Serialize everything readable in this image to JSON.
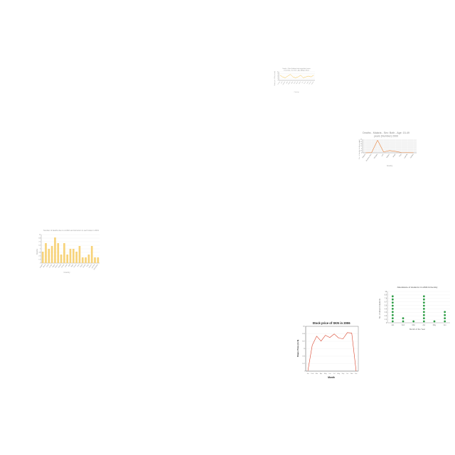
{
  "canvas": {
    "background": "#ffffff"
  },
  "chart_data": [
    {
      "id": "chart1",
      "type": "line",
      "title": "Deaths - Other ill-defined and unspecified causes of mortality - Sex: Both - Age: All Ages (Rate) (per 100k people)",
      "title_lines": [
        "Deaths - Other ill-defined and unspecified causes",
        "of mortality - Sex: Both - Age: All Ages (Rate)"
      ],
      "xlabel": "Country",
      "ylabel": "Rate (per 100k people)",
      "categories": [
        "Armenia",
        "Brazil",
        "Colombia",
        "Egypt",
        "Georgia",
        "Japan",
        "Kenya",
        "Mexico",
        "Nigeria",
        "Peru",
        "Russia",
        "Sudan",
        "Ukraine",
        "Vietnam"
      ],
      "values": [
        6,
        4,
        3,
        5,
        7,
        4,
        3,
        4,
        6,
        3,
        4,
        5,
        4,
        6
      ],
      "ylim": [
        0,
        10
      ],
      "color": "#f5c344",
      "grid": true
    },
    {
      "id": "chart2",
      "type": "line",
      "title": "Deaths - Malaria - Sex: Both - Age: 15-49 years (Number) 2000",
      "title_lines": [
        "Deaths - Malaria - Sex: Both - Age: 15-49",
        "years (Number) 2000"
      ],
      "xlabel": "Country",
      "ylabel": "No. of deaths (in thousands)",
      "categories": [
        "Albania",
        "Burkina Faso",
        "Ethiopia",
        "Iran",
        "Malawi",
        "Nepal",
        "Togo",
        "Uganda",
        "Zambia"
      ],
      "values": [
        0,
        0.3,
        14,
        1,
        2.5,
        1.6,
        0.3,
        0.2,
        0.1
      ],
      "ylim": [
        0,
        15
      ],
      "color": "#e8823a",
      "grid": true
    },
    {
      "id": "chart3",
      "type": "bar",
      "title": "Number of deaths due to conflict and terrorism in each state in 2019",
      "xlabel": "Country",
      "ylabel": "Deaths",
      "categories": [
        "Angola",
        "Benin",
        "Chad",
        "Congo",
        "Egypt",
        "Gabon",
        "Ghana",
        "Kenya",
        "Libya",
        "Mali",
        "Niger",
        "Oman",
        "Peru",
        "Qatar",
        "Sudan",
        "Togo",
        "Yemen",
        "Zambia",
        "Zimbabwe"
      ],
      "values": [
        4,
        7,
        5,
        6,
        9,
        7,
        3,
        7,
        3,
        5,
        5,
        4,
        6,
        2,
        2,
        3,
        6,
        2,
        2
      ],
      "ylim": [
        0,
        10
      ],
      "color": "#f7d37a",
      "grid": true
    },
    {
      "id": "chart4",
      "type": "scatter",
      "title": "Attendance of students in LAMA University",
      "xlabel": "Month of the Year",
      "ylabel": "No. of absent students",
      "categories": [
        "Jan",
        "Feb",
        "Mar",
        "Apr",
        "May",
        "Jun"
      ],
      "values": [
        9,
        2,
        1,
        9,
        1,
        4
      ],
      "ylim": [
        0,
        10
      ],
      "color": "#2e9e46",
      "grid": true
    },
    {
      "id": "chart5",
      "type": "line",
      "title": "Stock price of SKN in 2006",
      "xlabel": "Month",
      "ylabel": "Share Price (in $)",
      "categories": [
        "Jan",
        "Feb",
        "Mar",
        "Apr",
        "May",
        "Jun",
        "Jul",
        "Aug",
        "Sep",
        "Oct",
        "Nov",
        "Dec"
      ],
      "values": [
        1,
        58,
        78,
        67,
        80,
        75,
        83,
        74,
        72,
        86,
        85,
        0
      ],
      "ylim": [
        0,
        100
      ],
      "color": "#d9432b",
      "grid": true
    }
  ]
}
